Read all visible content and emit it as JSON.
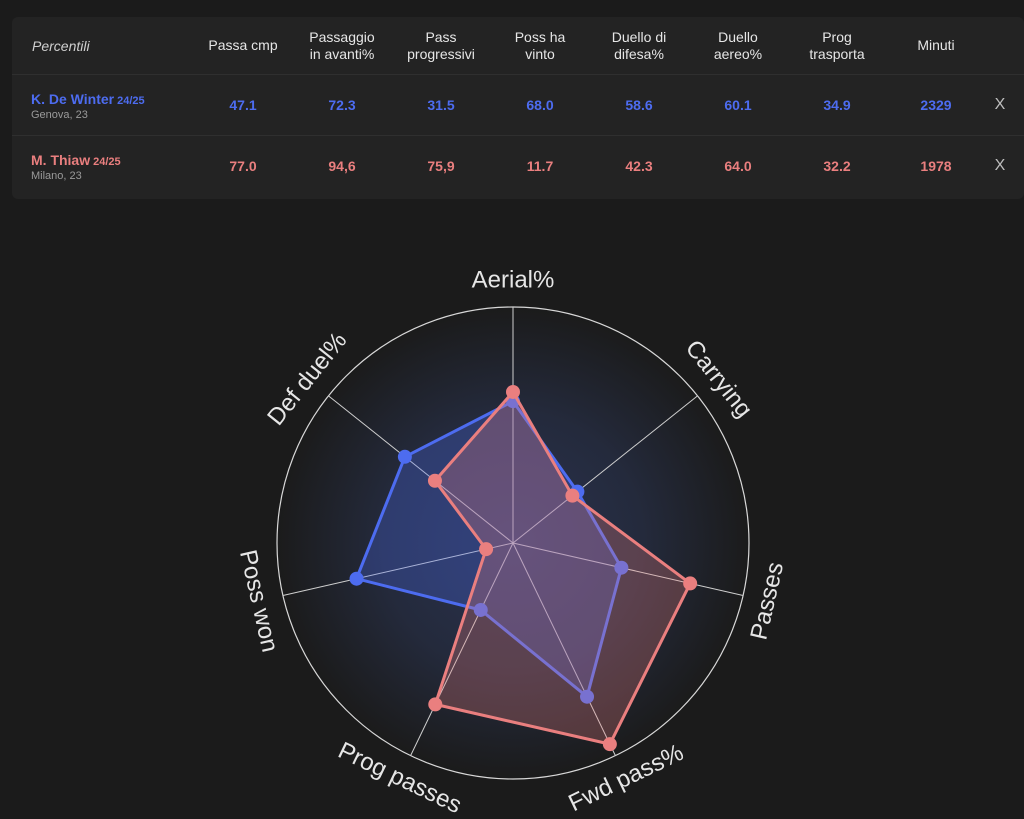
{
  "table": {
    "corner_label": "Percentili",
    "columns": [
      [
        "Passa cmp"
      ],
      [
        "Passaggio",
        "in avanti%"
      ],
      [
        "Pass",
        "progressivi"
      ],
      [
        "Poss ha",
        "vinto"
      ],
      [
        "Duello di",
        "difesa%"
      ],
      [
        "Duello",
        "aereo%"
      ],
      [
        "Prog",
        "trasporta"
      ],
      [
        "Minuti"
      ]
    ],
    "players": [
      {
        "name": "K. De Winter",
        "season": "24/25",
        "sub": "Genova, 23",
        "values": [
          "47.1",
          "72.3",
          "31.5",
          "68.0",
          "58.6",
          "60.1",
          "34.9",
          "2329"
        ],
        "remove_label": "X"
      },
      {
        "name": "M. Thiaw",
        "season": "24/25",
        "sub": "Milano, 23",
        "values": [
          "77.0",
          "94,6",
          "75,9",
          "11.7",
          "42.3",
          "64.0",
          "32.2",
          "1978"
        ],
        "remove_label": "X"
      }
    ]
  },
  "chart_data": {
    "type": "radar",
    "axes": [
      "Aerial%",
      "Carrying",
      "Passes",
      "Fwd pass%",
      "Prog passes",
      "Poss won",
      "Def duel%"
    ],
    "range": [
      0,
      100
    ],
    "series": [
      {
        "name": "K. De Winter",
        "color": "#4d6cf0",
        "values": [
          60.1,
          34.9,
          47.1,
          72.3,
          31.5,
          68.0,
          58.6
        ]
      },
      {
        "name": "M. Thiaw",
        "color": "#ea7f7f",
        "values": [
          64.0,
          32.2,
          77.0,
          94.6,
          75.9,
          11.7,
          42.3
        ]
      }
    ]
  }
}
